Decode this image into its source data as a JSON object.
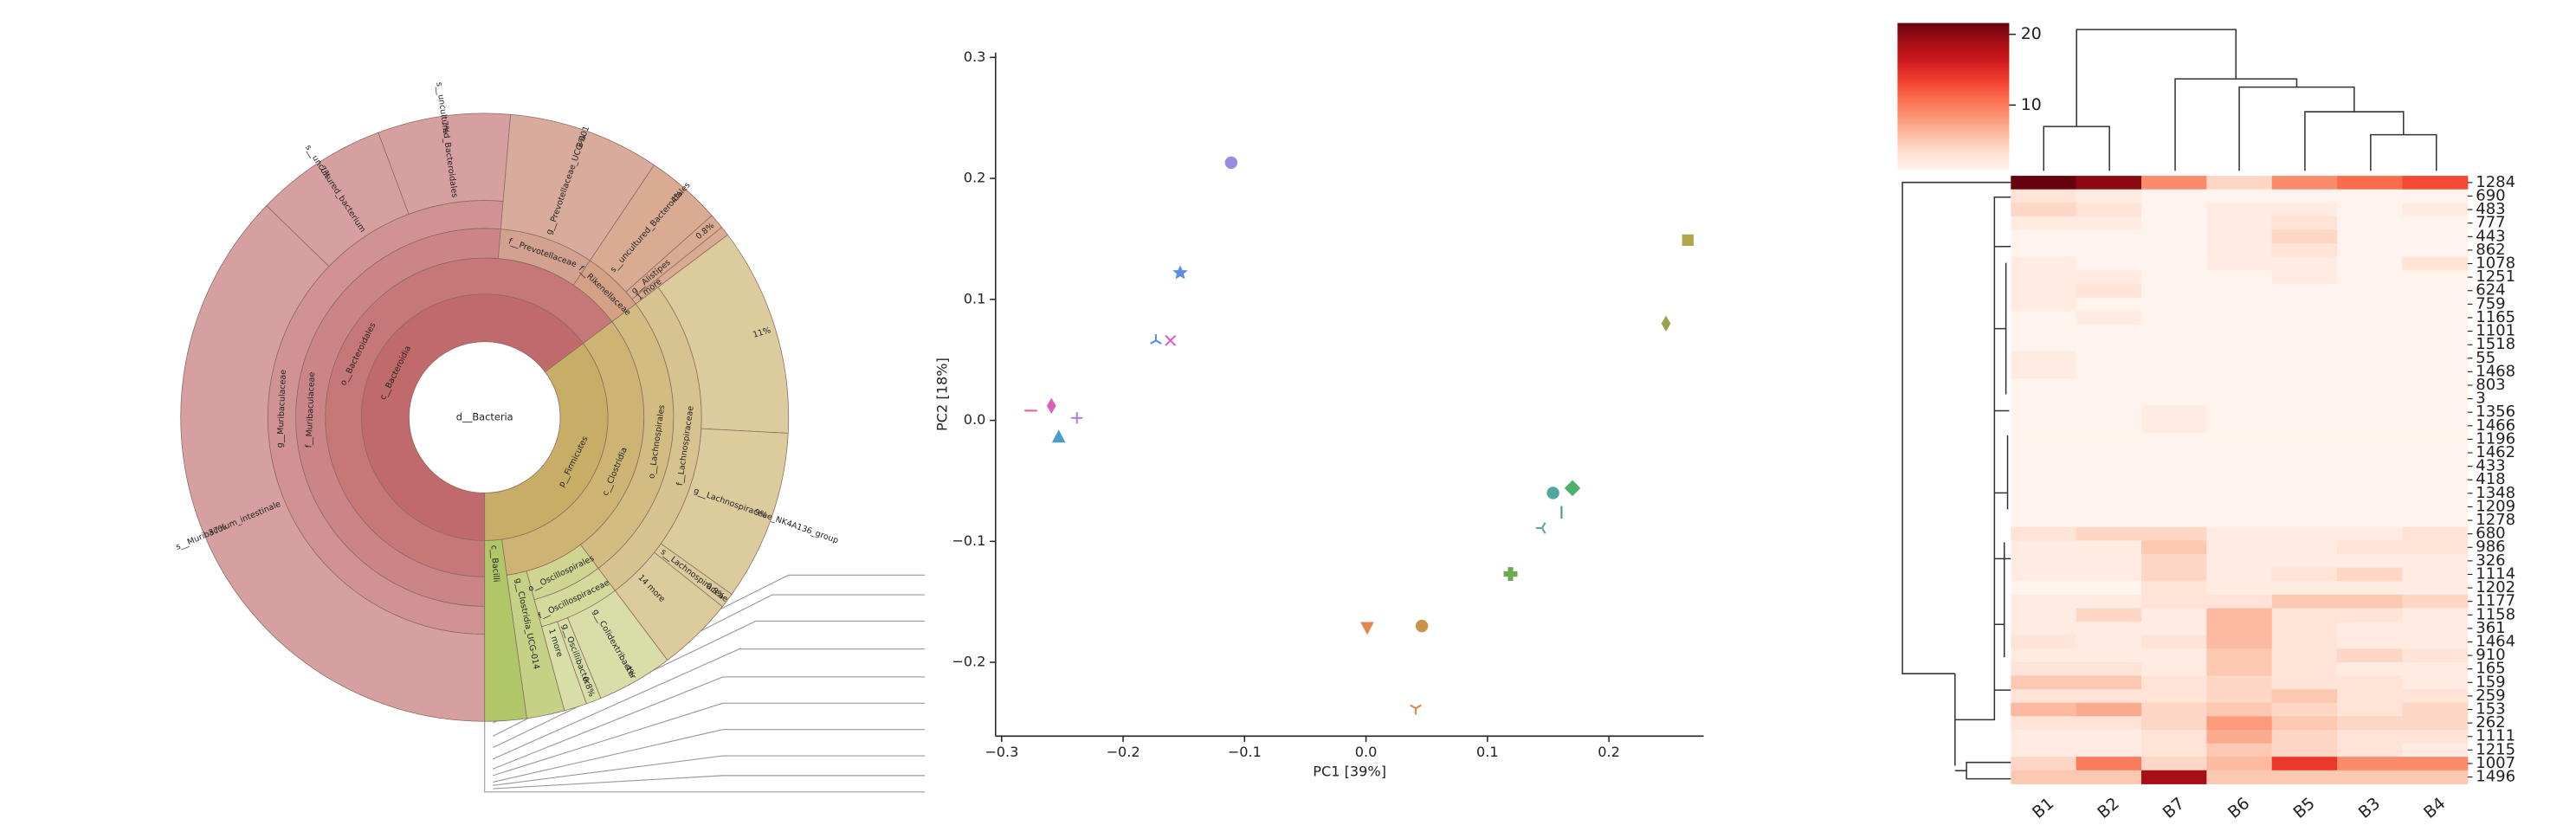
{
  "chart_data": [
    {
      "type": "sunburst",
      "root": {
        "name": "d__Bacteria",
        "children": [
          {
            "name": "c__Bacteroidia",
            "color": "#c06a6b",
            "children": [
              {
                "name": "o__Bacteroidales",
                "children": [
                  {
                    "name": "f__Muribaculaceae",
                    "children": [
                      {
                        "name": "g__Muribaculaceae",
                        "children": [
                          {
                            "name": "s__Muribaculum_intestinale",
                            "value": 37,
                            "value_label": "37%"
                          },
                          {
                            "name": "s__uncultured_bacterium",
                            "value": 7,
                            "value_label": "7%"
                          },
                          {
                            "name": "s__uncultured_Bacteroidales",
                            "value": 7,
                            "value_label": "7%"
                          }
                        ]
                      }
                    ]
                  },
                  {
                    "name": "f__Prevotellaceae",
                    "color": "#c98c78",
                    "children": [
                      {
                        "name": "g__Prevotellaceae_UCG-001",
                        "value": 8,
                        "value_label": "8%"
                      }
                    ]
                  },
                  {
                    "name": "f__Rikenellaceae",
                    "color": "#c98c6a",
                    "children": [
                      {
                        "name": "s__uncultured_Bacteroidales",
                        "value": 4,
                        "value_label": "4%"
                      },
                      {
                        "name": "g__Alistipes",
                        "value": 0.8,
                        "value_label": "0.8%"
                      },
                      {
                        "name": "1 more",
                        "value": 0.5
                      }
                    ]
                  }
                ]
              }
            ]
          },
          {
            "name": "p__Firmicutes",
            "color": "#c8ad66",
            "children": [
              {
                "name": "c__Clostridia",
                "children": [
                  {
                    "name": "o__Lachnospirales",
                    "children": [
                      {
                        "name": "f__Lachnospiraceae",
                        "children": [
                          {
                            "value": 11,
                            "value_label": "11%"
                          },
                          {
                            "name": "g__Lachnospiraceae_NK4A136_group",
                            "value": 9,
                            "value_label": "9%"
                          },
                          {
                            "name": "s__Lachnospiraceae",
                            "value": 0.8,
                            "value_label": "0.8%"
                          },
                          {
                            "name": "14 more",
                            "value": 4
                          }
                        ]
                      }
                    ]
                  },
                  {
                    "name": "o__Oscillospirales",
                    "color": "#c4cc78",
                    "children": [
                      {
                        "name": "f__Oscillospiraceae",
                        "children": [
                          {
                            "name": "g__Colidextribacter",
                            "value": 4,
                            "value_label": "4%"
                          },
                          {
                            "name": "g__Oscillibacter",
                            "value": 0.8,
                            "value_label": "0.8%"
                          },
                          {
                            "name": "1 more",
                            "value": 1.2
                          }
                        ]
                      }
                    ]
                  },
                  {
                    "name": "g__Clostridia_UCG-014",
                    "color": "#b8c86a",
                    "value": 2
                  }
                ]
              },
              {
                "name": "c__Bacilli",
                "color": "#a8c25a",
                "value": 2.2
              }
            ]
          }
        ]
      }
    },
    {
      "type": "scatter",
      "x": [
        -0.111,
        -0.153,
        -0.173,
        -0.161,
        -0.259,
        -0.276,
        -0.238,
        -0.253,
        0.265,
        0.247,
        0.17,
        0.154,
        0.161,
        0.145,
        0.119,
        0.001,
        0.046,
        0.041
      ],
      "y": [
        0.213,
        0.122,
        0.066,
        0.066,
        0.012,
        0.008,
        0.002,
        -0.014,
        0.149,
        0.08,
        -0.056,
        -0.06,
        -0.076,
        -0.089,
        -0.127,
        -0.171,
        -0.17,
        -0.238
      ],
      "markers": [
        "circle",
        "star",
        "tri_up",
        "x",
        "thin_diamond",
        "hline",
        "plus",
        "triangle_up",
        "square",
        "thin_diamond",
        "diamond",
        "circle",
        "vline",
        "tri_left",
        "plus_filled",
        "triangle_down",
        "circle",
        "tri_down"
      ],
      "colors": [
        "#9b8be0",
        "#5b8fe0",
        "#5b8fe0",
        "#d95fd0",
        "#d95fb8",
        "#e85f9a",
        "#b07ee0",
        "#4a9cc9",
        "#b3a64a",
        "#9aa34a",
        "#4fb06a",
        "#4fa8a0",
        "#3aa08a",
        "#58a8b0",
        "#6aaa50",
        "#e08850",
        "#c8944a",
        "#e08850"
      ],
      "xlabel": "PC1 [39%]",
      "ylabel": "PC2 [18%]",
      "xlim": [
        -0.305,
        0.278
      ],
      "ylim": [
        -0.261,
        0.304
      ],
      "xticks": [
        {
          "value": -0.3,
          "label": "−0.3"
        },
        {
          "value": -0.2,
          "label": "−0.2"
        },
        {
          "value": -0.1,
          "label": "−0.1"
        },
        {
          "value": 0,
          "label": "0.0"
        },
        0.1,
        0.2
      ],
      "yticks": [
        {
          "value": -0.2,
          "label": "−0.2"
        },
        {
          "value": -0.1,
          "label": "−0.1"
        },
        {
          "value": 0,
          "label": "0.0"
        },
        0.1,
        0.2,
        0.3
      ]
    },
    {
      "type": "heatmap",
      "colormap": "Reds",
      "columns": [
        "B1",
        "B2",
        "B7",
        "B6",
        "B5",
        "B3",
        "B4"
      ],
      "rows": [
        "1284",
        "690",
        "483",
        "777",
        "443",
        "862",
        "1078",
        "1251",
        "624",
        "759",
        "1165",
        "1101",
        "1518",
        "55",
        "1468",
        "803",
        "3",
        "1356",
        "1466",
        "1196",
        "1462",
        "433",
        "418",
        "1348",
        "1209",
        "1278",
        "680",
        "986",
        "326",
        "1114",
        "1202",
        "1177",
        "1158",
        "361",
        "1464",
        "910",
        "165",
        "159",
        "259",
        "153",
        "262",
        "1111",
        "1215",
        "1007",
        "1496"
      ],
      "values": [
        [
          22,
          20,
          9,
          4,
          9,
          11,
          13
        ],
        [
          3,
          2,
          1,
          1,
          1,
          1,
          1
        ],
        [
          4,
          3,
          1,
          2,
          2,
          1,
          2
        ],
        [
          2,
          2,
          1,
          2,
          3,
          1,
          1
        ],
        [
          1,
          1,
          1,
          2,
          4,
          1,
          1
        ],
        [
          1,
          1,
          1,
          2,
          3,
          1,
          1
        ],
        [
          2,
          1,
          1,
          2,
          2,
          1,
          3
        ],
        [
          2,
          2,
          1,
          1,
          2,
          1,
          1
        ],
        [
          2,
          3,
          1,
          1,
          1,
          1,
          1
        ],
        [
          2,
          1,
          1,
          1,
          1,
          1,
          1
        ],
        [
          1,
          2,
          1,
          1,
          1,
          1,
          1
        ],
        [
          1,
          1,
          1,
          1,
          1,
          1,
          1
        ],
        [
          1,
          1,
          1,
          1,
          1,
          1,
          1
        ],
        [
          2,
          1,
          1,
          1,
          1,
          1,
          1
        ],
        [
          2,
          1,
          1,
          1,
          1,
          1,
          1
        ],
        [
          1,
          1,
          1,
          1,
          1,
          1,
          1
        ],
        [
          1,
          1,
          1,
          1,
          1,
          1,
          1
        ],
        [
          1,
          1,
          2,
          1,
          1,
          1,
          1
        ],
        [
          1,
          1,
          2,
          1,
          1,
          1,
          1
        ],
        [
          1,
          1,
          1,
          1,
          1,
          1,
          1
        ],
        [
          1,
          1,
          1,
          1,
          1,
          1,
          1
        ],
        [
          1,
          1,
          1,
          1,
          1,
          1,
          1
        ],
        [
          1,
          1,
          1,
          1,
          1,
          1,
          1
        ],
        [
          1,
          1,
          1,
          1,
          1,
          1,
          1
        ],
        [
          1,
          1,
          1,
          1,
          1,
          1,
          1
        ],
        [
          1,
          1,
          1,
          1,
          1,
          1,
          1
        ],
        [
          3,
          4,
          4,
          2,
          2,
          2,
          3
        ],
        [
          2,
          2,
          5,
          2,
          2,
          3,
          3
        ],
        [
          2,
          2,
          4,
          2,
          2,
          2,
          2
        ],
        [
          2,
          2,
          4,
          2,
          3,
          4,
          2
        ],
        [
          1,
          1,
          3,
          2,
          2,
          2,
          2
        ],
        [
          2,
          2,
          3,
          3,
          5,
          5,
          4
        ],
        [
          2,
          4,
          2,
          6,
          3,
          3,
          2
        ],
        [
          2,
          2,
          2,
          6,
          3,
          2,
          2
        ],
        [
          3,
          2,
          3,
          6,
          3,
          2,
          2
        ],
        [
          2,
          2,
          2,
          5,
          3,
          4,
          3
        ],
        [
          3,
          3,
          2,
          5,
          3,
          2,
          2
        ],
        [
          5,
          5,
          3,
          4,
          3,
          3,
          2
        ],
        [
          3,
          3,
          3,
          4,
          5,
          3,
          3
        ],
        [
          6,
          7,
          4,
          5,
          4,
          3,
          4
        ],
        [
          3,
          3,
          4,
          8,
          5,
          4,
          4
        ],
        [
          2,
          2,
          3,
          7,
          4,
          3,
          3
        ],
        [
          2,
          2,
          3,
          5,
          4,
          3,
          2
        ],
        [
          4,
          10,
          4,
          6,
          14,
          9,
          9
        ],
        [
          5,
          5,
          19,
          5,
          5,
          5,
          5
        ]
      ],
      "zlim": [
        0.7,
        21.6
      ],
      "zticks": [
        10,
        20
      ]
    }
  ]
}
